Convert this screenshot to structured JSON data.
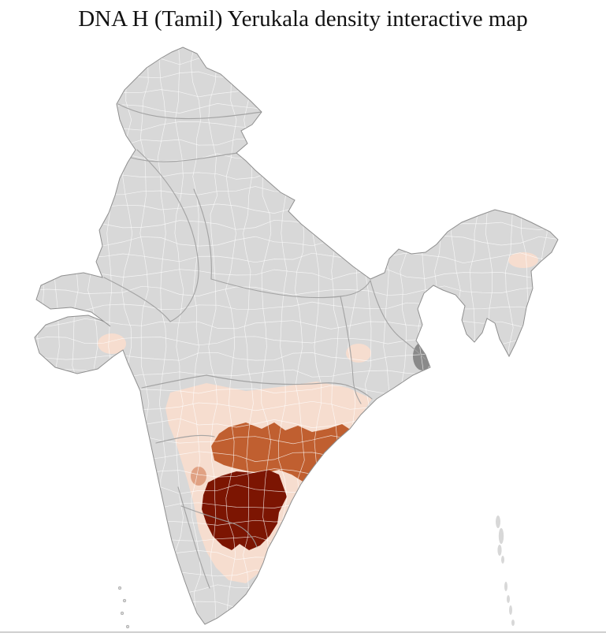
{
  "page": {
    "title": "DNA H (Tamil) Yerukala density interactive map"
  },
  "map": {
    "colors": {
      "base_district": "#d8d8d8",
      "density_low": "#f6ddcf",
      "density_mid_low": "#e0a183",
      "density_mid": "#c05f30",
      "density_high": "#7c1502",
      "masked_area": "#8a8a8a",
      "district_border": "#ffffff",
      "state_border": "#9d9d9d",
      "outline": "#8f8f8f"
    }
  }
}
